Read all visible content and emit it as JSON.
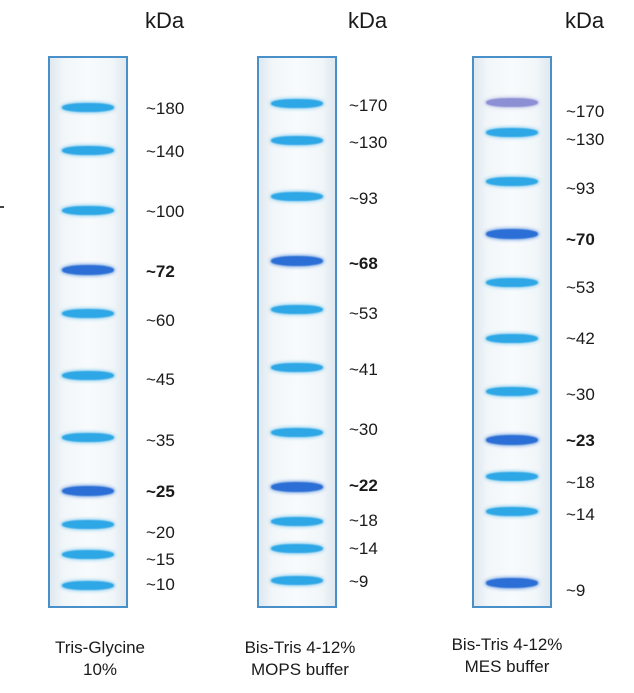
{
  "unit_label": "kDa",
  "ladders": [
    {
      "caption_line1": "Tris-Glycine",
      "caption_line2": "10%",
      "markers": [
        {
          "label": "~180",
          "bold": false
        },
        {
          "label": "~140",
          "bold": false
        },
        {
          "label": "~100",
          "bold": false
        },
        {
          "label": "~72",
          "bold": true
        },
        {
          "label": "~60",
          "bold": false
        },
        {
          "label": "~45",
          "bold": false
        },
        {
          "label": "~35",
          "bold": false
        },
        {
          "label": "~25",
          "bold": true
        },
        {
          "label": "~20",
          "bold": false
        },
        {
          "label": "~15",
          "bold": false
        },
        {
          "label": "~10",
          "bold": false
        }
      ]
    },
    {
      "caption_line1": "Bis-Tris 4-12%",
      "caption_line2": "MOPS buffer",
      "markers": [
        {
          "label": "~170",
          "bold": false
        },
        {
          "label": "~130",
          "bold": false
        },
        {
          "label": "~93",
          "bold": false
        },
        {
          "label": "~68",
          "bold": true
        },
        {
          "label": "~53",
          "bold": false
        },
        {
          "label": "~41",
          "bold": false
        },
        {
          "label": "~30",
          "bold": false
        },
        {
          "label": "~22",
          "bold": true
        },
        {
          "label": "~18",
          "bold": false
        },
        {
          "label": "~14",
          "bold": false
        },
        {
          "label": "~9",
          "bold": false
        }
      ]
    },
    {
      "caption_line1": "Bis-Tris 4-12%",
      "caption_line2": "MES buffer",
      "markers": [
        {
          "label": "~170",
          "bold": false
        },
        {
          "label": "~130",
          "bold": false
        },
        {
          "label": "~93",
          "bold": false
        },
        {
          "label": "~70",
          "bold": true
        },
        {
          "label": "~53",
          "bold": false
        },
        {
          "label": "~42",
          "bold": false
        },
        {
          "label": "~30",
          "bold": false
        },
        {
          "label": "~23",
          "bold": true
        },
        {
          "label": "~18",
          "bold": false
        },
        {
          "label": "~14",
          "bold": false
        },
        {
          "label": "~9",
          "bold": false
        }
      ]
    }
  ]
}
